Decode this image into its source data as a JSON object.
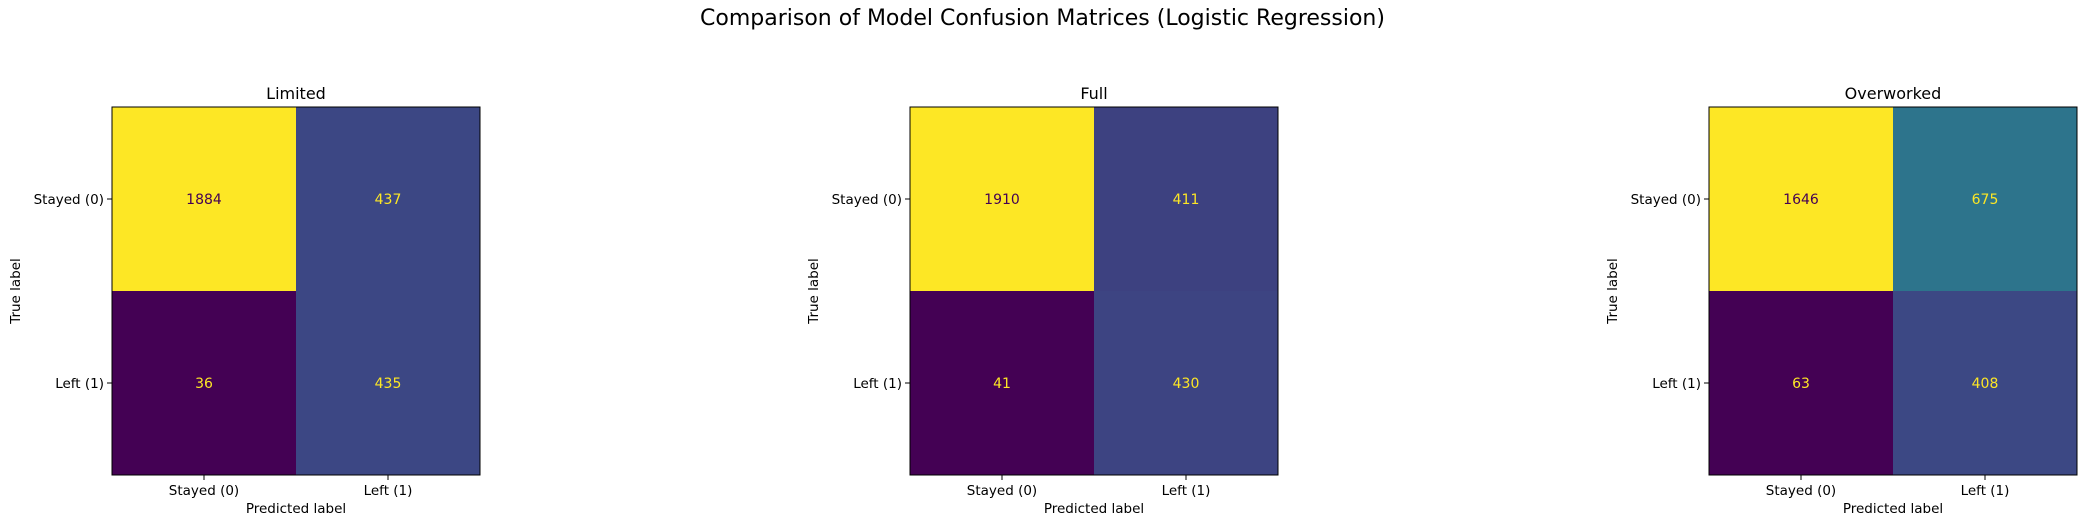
{
  "figure": {
    "suptitle": "Comparison of Model Confusion Matrices (Logistic Regression)"
  },
  "colormap": {
    "name": "viridis",
    "stops": [
      "#440154",
      "#3b528b",
      "#21908d",
      "#5dc963",
      "#fde725"
    ],
    "text_on_dark": "#fde725",
    "text_on_light": "#440154"
  },
  "chart_data": [
    {
      "type": "heatmap",
      "title": "Limited",
      "xlabel": "Predicted label",
      "ylabel": "True label",
      "x_tick_labels": [
        "Stayed (0)",
        "Left (1)"
      ],
      "y_tick_labels": [
        "Stayed (0)",
        "Left (1)"
      ],
      "values": [
        [
          1884,
          437
        ],
        [
          36,
          435
        ]
      ]
    },
    {
      "type": "heatmap",
      "title": "Full",
      "xlabel": "Predicted label",
      "ylabel": "True label",
      "x_tick_labels": [
        "Stayed (0)",
        "Left (1)"
      ],
      "y_tick_labels": [
        "Stayed (0)",
        "Left (1)"
      ],
      "values": [
        [
          1910,
          411
        ],
        [
          41,
          430
        ]
      ]
    },
    {
      "type": "heatmap",
      "title": "Overworked",
      "xlabel": "Predicted label",
      "ylabel": "True label",
      "x_tick_labels": [
        "Stayed (0)",
        "Left (1)"
      ],
      "y_tick_labels": [
        "Stayed (0)",
        "Left (1)"
      ],
      "values": [
        [
          1646,
          675
        ],
        [
          63,
          408
        ]
      ]
    }
  ]
}
